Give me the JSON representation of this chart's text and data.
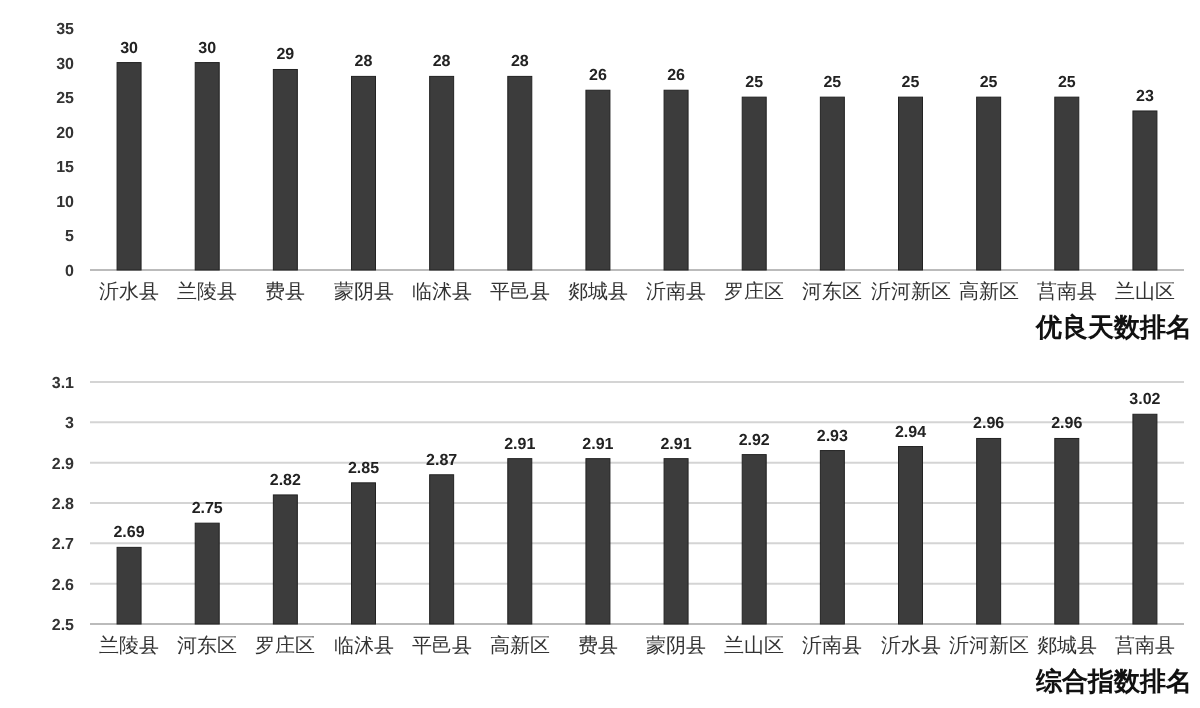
{
  "chart_data": [
    {
      "type": "bar",
      "xlabel": "优良天数排名",
      "categories": [
        "沂水县",
        "兰陵县",
        "费县",
        "蒙阴县",
        "临沭县",
        "平邑县",
        "郯城县",
        "沂南县",
        "罗庄区",
        "河东区",
        "沂河新区",
        "高新区",
        "莒南县",
        "兰山区"
      ],
      "values": [
        30,
        30,
        29,
        28,
        28,
        28,
        26,
        26,
        25,
        25,
        25,
        25,
        25,
        23
      ],
      "color": "#3c3c3c",
      "ylim": [
        0,
        35
      ],
      "yticks": [
        0,
        5,
        10,
        15,
        20,
        25,
        30,
        35
      ],
      "data_labels": true
    },
    {
      "type": "bar",
      "xlabel": "综合指数排名",
      "categories": [
        "兰陵县",
        "河东区",
        "罗庄区",
        "临沭县",
        "平邑县",
        "高新区",
        "费县",
        "蒙阴县",
        "兰山区",
        "沂南县",
        "沂水县",
        "沂河新区",
        "郯城县",
        "莒南县"
      ],
      "values": [
        2.69,
        2.75,
        2.82,
        2.85,
        2.87,
        2.91,
        2.91,
        2.91,
        2.92,
        2.93,
        2.94,
        2.96,
        2.96,
        3.02
      ],
      "color": "#3c3c3c",
      "ylim": [
        2.5,
        3.1
      ],
      "yticks": [
        2.5,
        2.6,
        2.7,
        2.8,
        2.9,
        3,
        3.1
      ],
      "grid": "y",
      "data_labels": true
    }
  ]
}
